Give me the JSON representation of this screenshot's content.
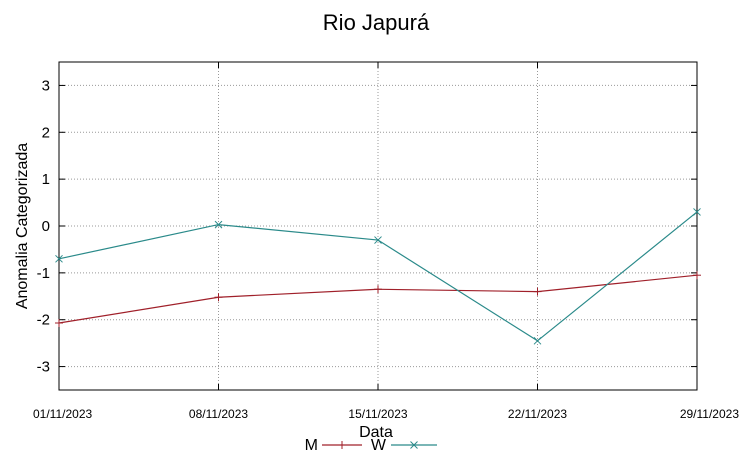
{
  "chart_data": {
    "type": "line",
    "title": "Rio Japurá",
    "xlabel": "Data",
    "ylabel": "Anomalia Categorizada",
    "categories": [
      "01/11/2023",
      "08/11/2023",
      "15/11/2023",
      "22/11/2023",
      "29/11/2023"
    ],
    "ylim": [
      -3.5,
      3.5
    ],
    "yticks": [
      3,
      2,
      1,
      0,
      -1,
      -2,
      -3
    ],
    "grid": true,
    "legend_position": "bottom",
    "series": [
      {
        "name": "M",
        "values": [
          -2.07,
          -1.52,
          -1.35,
          -1.4,
          -1.05
        ],
        "color": "#a0202a",
        "marker": "plus"
      },
      {
        "name": "W",
        "values": [
          -0.7,
          0.03,
          -0.3,
          -2.45,
          0.3
        ],
        "color": "#2a8a8a",
        "marker": "cross"
      }
    ]
  }
}
